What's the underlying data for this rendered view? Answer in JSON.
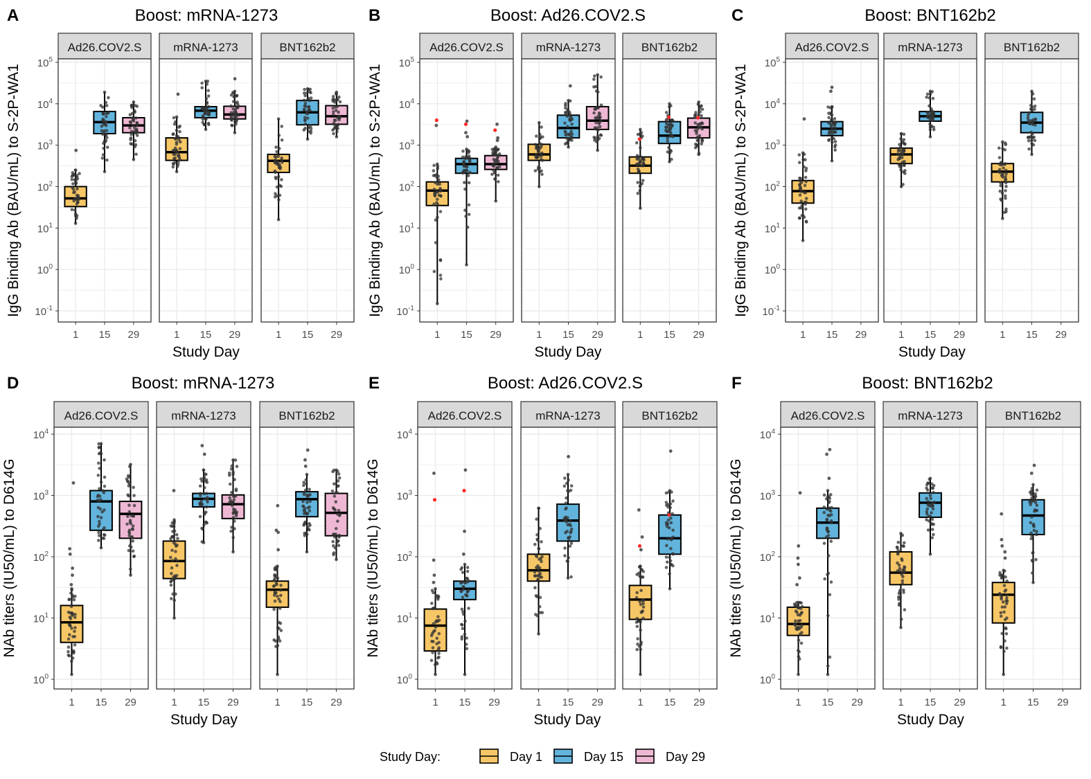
{
  "legend": {
    "title": "Study Day:",
    "items": [
      {
        "label": "Day 1",
        "color": "#F7C767"
      },
      {
        "label": "Day 15",
        "color": "#62B4DC"
      },
      {
        "label": "Day 29",
        "color": "#EEB8D4"
      }
    ]
  },
  "colors": {
    "outline": "#000000",
    "point": "#333333",
    "highlight_point": "#FF2A2A",
    "grid": "#EBEBEB",
    "strip": "#D9D9D9"
  },
  "chart_data": [
    {
      "type": "box",
      "letter": "A",
      "title": "Boost: mRNA-1273",
      "ylabel": "IgG Binding Ab (BAU/mL) to S-2P-WA1",
      "xlabel": "Study Day",
      "yscale": "log10",
      "yticks_exp": [
        -1,
        0,
        1,
        2,
        3,
        4,
        5
      ],
      "grid": true,
      "x_categories": [
        "1",
        "15",
        "29"
      ],
      "facets": [
        {
          "label": "Ad26.COV2.S",
          "boxes": [
            {
              "day": "1",
              "lo": 13,
              "q1": 33,
              "median": 52,
              "q3": 100,
              "hi": 250,
              "outliers": [
                750
              ]
            },
            {
              "day": "15",
              "lo": 230,
              "q1": 1900,
              "median": 3600,
              "q3": 6500,
              "hi": 19000,
              "outliers": []
            },
            {
              "day": "29",
              "lo": 450,
              "q1": 2000,
              "median": 3000,
              "q3": 4600,
              "hi": 11000,
              "outliers": []
            }
          ]
        },
        {
          "label": "mRNA-1273",
          "boxes": [
            {
              "day": "1",
              "lo": 230,
              "q1": 430,
              "median": 680,
              "q3": 1500,
              "hi": 4800,
              "outliers": [
                17000
              ]
            },
            {
              "day": "15",
              "lo": 2400,
              "q1": 4600,
              "median": 6800,
              "q3": 8500,
              "hi": 35000,
              "outliers": []
            },
            {
              "day": "29",
              "lo": 2000,
              "q1": 4300,
              "median": 5500,
              "q3": 8700,
              "hi": 20000,
              "outliers": [
                40000
              ]
            }
          ]
        },
        {
          "label": "BNT162b2",
          "boxes": [
            {
              "day": "1",
              "lo": 16,
              "q1": 220,
              "median": 420,
              "q3": 600,
              "hi": 4300,
              "outliers": []
            },
            {
              "day": "15",
              "lo": 1400,
              "q1": 3100,
              "median": 6200,
              "q3": 12000,
              "hi": 23000,
              "outliers": []
            },
            {
              "day": "29",
              "lo": 1600,
              "q1": 3200,
              "median": 5000,
              "q3": 9000,
              "hi": 19000,
              "outliers": []
            }
          ]
        }
      ]
    },
    {
      "type": "box",
      "letter": "B",
      "title": "Boost: Ad26.COV2.S",
      "ylabel": "IgG Binding Ab (BAU/mL) to S-2P-WA1",
      "xlabel": "Study Day",
      "yscale": "log10",
      "yticks_exp": [
        -1,
        0,
        1,
        2,
        3,
        4,
        5
      ],
      "grid": true,
      "x_categories": [
        "1",
        "15",
        "29"
      ],
      "facets": [
        {
          "label": "Ad26.COV2.S",
          "boxes": [
            {
              "day": "1",
              "lo": 0.15,
              "q1": 35,
              "median": 80,
              "q3": 130,
              "hi": 350,
              "outliers": [
                3000
              ],
              "highlight": [
                4000
              ]
            },
            {
              "day": "15",
              "lo": 1.3,
              "q1": 210,
              "median": 350,
              "q3": 480,
              "hi": 800,
              "outliers": [
                1600,
                2000,
                3800
              ],
              "highlight": [
                3200
              ]
            },
            {
              "day": "29",
              "lo": 45,
              "q1": 260,
              "median": 350,
              "q3": 560,
              "hi": 900,
              "outliers": [
                1300,
                1500,
                3200
              ],
              "highlight": [
                2300
              ]
            }
          ]
        },
        {
          "label": "mRNA-1273",
          "boxes": [
            {
              "day": "1",
              "lo": 100,
              "q1": 430,
              "median": 600,
              "q3": 1050,
              "hi": 3500,
              "outliers": []
            },
            {
              "day": "15",
              "lo": 900,
              "q1": 1500,
              "median": 2600,
              "q3": 5300,
              "hi": 12000,
              "outliers": [
                27000
              ]
            },
            {
              "day": "29",
              "lo": 750,
              "q1": 2400,
              "median": 3900,
              "q3": 8500,
              "hi": 50000,
              "outliers": []
            }
          ]
        },
        {
          "label": "BNT162b2",
          "boxes": [
            {
              "day": "1",
              "lo": 30,
              "q1": 210,
              "median": 320,
              "q3": 520,
              "hi": 2400,
              "outliers": [],
              "highlight": [
                1400
              ]
            },
            {
              "day": "15",
              "lo": 400,
              "q1": 1100,
              "median": 1700,
              "q3": 3700,
              "hi": 10000,
              "outliers": [],
              "highlight": [
                4700
              ]
            },
            {
              "day": "29",
              "lo": 600,
              "q1": 1500,
              "median": 2700,
              "q3": 4500,
              "hi": 11000,
              "outliers": [],
              "highlight": [
                4600
              ]
            }
          ]
        }
      ]
    },
    {
      "type": "box",
      "letter": "C",
      "title": "Boost: BNT162b2",
      "ylabel": "IgG Binding Ab (BAU/mL) to S-2P-WA1",
      "xlabel": "Study Day",
      "yscale": "log10",
      "yticks_exp": [
        -1,
        0,
        1,
        2,
        3,
        4,
        5
      ],
      "grid": true,
      "x_categories": [
        "1",
        "15",
        "29"
      ],
      "facets": [
        {
          "label": "Ad26.COV2.S",
          "boxes": [
            {
              "day": "1",
              "lo": 5,
              "q1": 40,
              "median": 78,
              "q3": 140,
              "hi": 650,
              "outliers": [
                4300
              ]
            },
            {
              "day": "15",
              "lo": 420,
              "q1": 1700,
              "median": 2500,
              "q3": 3700,
              "hi": 8500,
              "outliers": [
                20000,
                25000
              ]
            }
          ]
        },
        {
          "label": "mRNA-1273",
          "boxes": [
            {
              "day": "1",
              "lo": 100,
              "q1": 360,
              "median": 600,
              "q3": 850,
              "hi": 1900,
              "outliers": []
            },
            {
              "day": "15",
              "lo": 1600,
              "q1": 3800,
              "median": 5000,
              "q3": 6500,
              "hi": 20000,
              "outliers": []
            }
          ]
        },
        {
          "label": "BNT162b2",
          "boxes": [
            {
              "day": "1",
              "lo": 17,
              "q1": 130,
              "median": 230,
              "q3": 360,
              "hi": 1200,
              "outliers": []
            },
            {
              "day": "15",
              "lo": 600,
              "q1": 2000,
              "median": 3500,
              "q3": 6200,
              "hi": 20000,
              "outliers": []
            }
          ]
        }
      ]
    },
    {
      "type": "box",
      "letter": "D",
      "title": "Boost: mRNA-1273",
      "ylabel": "NAb titers (IU50/mL) to D614G",
      "xlabel": "Study Day",
      "yscale": "log10",
      "yticks_exp": [
        0,
        1,
        2,
        3,
        4
      ],
      "grid": true,
      "x_categories": [
        "1",
        "15",
        "29"
      ],
      "facets": [
        {
          "label": "Ad26.COV2.S",
          "boxes": [
            {
              "day": "1",
              "lo": 1.2,
              "q1": 4,
              "median": 8.5,
              "q3": 16,
              "hi": 30,
              "outliers": [
                35,
                50,
                65,
                110,
                135,
                1600
              ]
            },
            {
              "day": "15",
              "lo": 140,
              "q1": 270,
              "median": 800,
              "q3": 1200,
              "hi": 7000,
              "outliers": []
            },
            {
              "day": "29",
              "lo": 50,
              "q1": 200,
              "median": 500,
              "q3": 800,
              "hi": 3200,
              "outliers": []
            }
          ]
        },
        {
          "label": "mRNA-1273",
          "boxes": [
            {
              "day": "1",
              "lo": 10,
              "q1": 44,
              "median": 85,
              "q3": 180,
              "hi": 400,
              "outliers": [
                1200
              ]
            },
            {
              "day": "15",
              "lo": 170,
              "q1": 650,
              "median": 880,
              "q3": 1080,
              "hi": 2600,
              "outliers": [
                4700,
                6500
              ]
            },
            {
              "day": "29",
              "lo": 120,
              "q1": 420,
              "median": 720,
              "q3": 1020,
              "hi": 3800,
              "outliers": []
            }
          ]
        },
        {
          "label": "BNT162b2",
          "boxes": [
            {
              "day": "1",
              "lo": 1.2,
              "q1": 15,
              "median": 29,
              "q3": 40,
              "hi": 70,
              "outliers": [
                130,
                250,
                270,
                680
              ]
            },
            {
              "day": "15",
              "lo": 120,
              "q1": 450,
              "median": 870,
              "q3": 1150,
              "hi": 2200,
              "outliers": [
                3000,
                3800,
                5500
              ]
            },
            {
              "day": "29",
              "lo": 90,
              "q1": 220,
              "median": 520,
              "q3": 1080,
              "hi": 2600,
              "outliers": []
            }
          ]
        }
      ]
    },
    {
      "type": "box",
      "letter": "E",
      "title": "Boost: Ad26.COV2.S",
      "ylabel": "NAb titers (IU50/mL) to D614G",
      "xlabel": "Study Day",
      "yscale": "log10",
      "yticks_exp": [
        0,
        1,
        2,
        3,
        4
      ],
      "grid": true,
      "x_categories": [
        "1",
        "15",
        "29"
      ],
      "facets": [
        {
          "label": "Ad26.COV2.S",
          "boxes": [
            {
              "day": "1",
              "lo": 1.2,
              "q1": 2.9,
              "median": 7.5,
              "q3": 14,
              "hi": 30,
              "outliers": [
                38,
                50,
                88,
                2300
              ],
              "highlight": [
                850
              ]
            },
            {
              "day": "15",
              "lo": 1.2,
              "q1": 20,
              "median": 30,
              "q3": 40,
              "hi": 75,
              "outliers": [
                110,
                260,
                2600
              ],
              "highlight": [
                1200
              ]
            }
          ]
        },
        {
          "label": "mRNA-1273",
          "boxes": [
            {
              "day": "1",
              "lo": 5.5,
              "q1": 40,
              "median": 60,
              "q3": 110,
              "hi": 620,
              "outliers": []
            },
            {
              "day": "15",
              "lo": 45,
              "q1": 180,
              "median": 390,
              "q3": 720,
              "hi": 2200,
              "outliers": [
                4300
              ]
            }
          ]
        },
        {
          "label": "BNT162b2",
          "boxes": [
            {
              "day": "1",
              "lo": 1.2,
              "q1": 9.5,
              "median": 20,
              "q3": 34,
              "hi": 70,
              "outliers": [
                130,
                210,
                580
              ],
              "highlight": [
                150
              ]
            },
            {
              "day": "15",
              "lo": 30,
              "q1": 110,
              "median": 200,
              "q3": 480,
              "hi": 1200,
              "outliers": [
                5300
              ],
              "highlight": [
                480
              ]
            }
          ]
        }
      ]
    },
    {
      "type": "box",
      "letter": "F",
      "title": "Boost: BNT162b2",
      "ylabel": "NAb titers (IU50/mL) to D614G",
      "xlabel": "Study Day",
      "yscale": "log10",
      "yticks_exp": [
        0,
        1,
        2,
        3,
        4
      ],
      "grid": true,
      "x_categories": [
        "1",
        "15",
        "29"
      ],
      "facets": [
        {
          "label": "Ad26.COV2.S",
          "boxes": [
            {
              "day": "1",
              "lo": 1.2,
              "q1": 5.2,
              "median": 8,
              "q3": 15,
              "hi": 18,
              "outliers": [
                35,
                45,
                75,
                95,
                150,
                1100
              ]
            },
            {
              "day": "15",
              "lo": 1.2,
              "q1": 200,
              "median": 360,
              "q3": 620,
              "hi": 1200,
              "outliers": [
                1900,
                4700,
                5600
              ]
            }
          ]
        },
        {
          "label": "mRNA-1273",
          "boxes": [
            {
              "day": "1",
              "lo": 7,
              "q1": 35,
              "median": 55,
              "q3": 120,
              "hi": 240,
              "outliers": []
            },
            {
              "day": "15",
              "lo": 110,
              "q1": 440,
              "median": 760,
              "q3": 1100,
              "hi": 1900,
              "outliers": []
            }
          ]
        },
        {
          "label": "BNT162b2",
          "boxes": [
            {
              "day": "1",
              "lo": 1.2,
              "q1": 8.3,
              "median": 24,
              "q3": 38,
              "hi": 60,
              "outliers": [
                95,
                120,
                150,
                190,
                500
              ]
            },
            {
              "day": "15",
              "lo": 38,
              "q1": 230,
              "median": 470,
              "q3": 850,
              "hi": 1500,
              "outliers": [
                2300,
                3100
              ]
            }
          ]
        }
      ]
    }
  ]
}
